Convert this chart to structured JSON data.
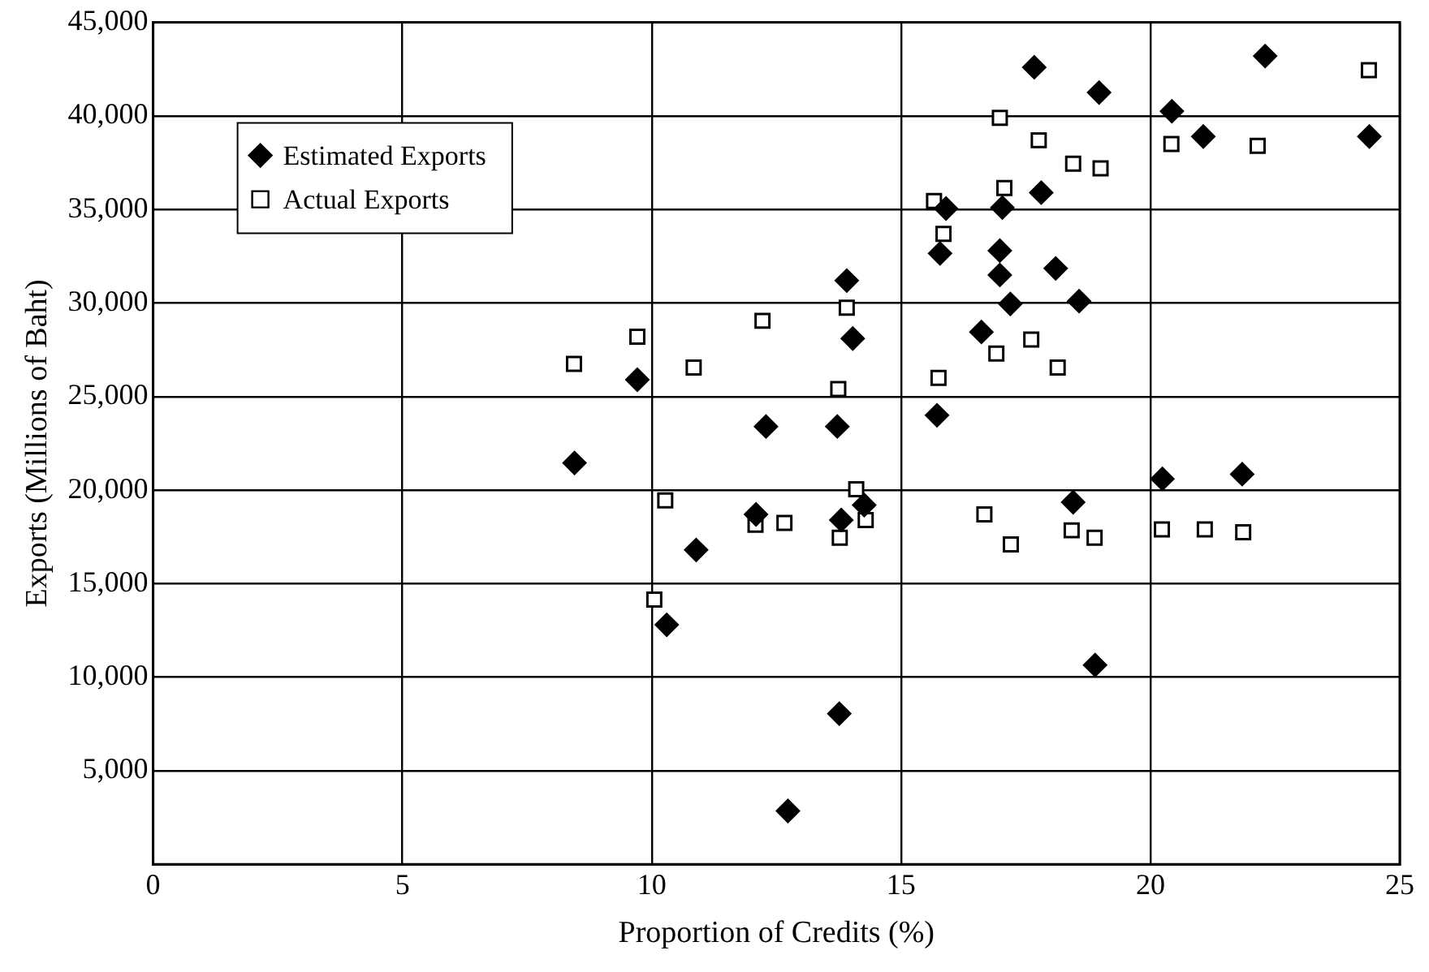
{
  "chart_data": {
    "type": "scatter",
    "xlabel": "Proportion of Credits (%)",
    "ylabel": "Exports (Millions of Baht)",
    "xlim": [
      0,
      25
    ],
    "xticks": [
      0,
      5,
      10,
      15,
      20,
      25
    ],
    "ylim": [
      0,
      45000
    ],
    "yticks": [
      {
        "value": 0,
        "label": null
      },
      {
        "value": 5000,
        "label": "5,000"
      },
      {
        "value": 10000,
        "label": "10,000"
      },
      {
        "value": 15000,
        "label": "15,000"
      },
      {
        "value": 20000,
        "label": "20,000"
      },
      {
        "value": 25000,
        "label": "25,000"
      },
      {
        "value": 30000,
        "label": "30,000"
      },
      {
        "value": 35000,
        "label": "35,000"
      },
      {
        "value": 40000,
        "label": "40,000"
      },
      {
        "value": 45000,
        "label": "45,000"
      }
    ],
    "grid": true,
    "legend": "top left",
    "series": [
      {
        "name": "Estimated Exports",
        "color": "#000000",
        "marker": "diamond",
        "x": [
          13.91,
          14.03,
          9.71,
          12.29,
          13.72,
          8.45,
          12.09,
          13.8,
          14.26,
          10.89,
          10.3,
          13.76,
          12.73,
          17.67,
          18.97,
          22.3,
          20.43,
          21.06,
          24.39,
          15.9,
          17.03,
          17.81,
          15.78,
          16.98,
          16.98,
          18.1,
          17.19,
          18.57,
          16.61,
          15.72,
          20.24,
          21.84,
          18.45,
          18.89
        ],
        "values": [
          31200,
          28100,
          25900,
          23400,
          23400,
          21450,
          18700,
          18400,
          19200,
          16800,
          12800,
          8050,
          2850,
          42600,
          41250,
          43200,
          40250,
          38900,
          38900,
          35050,
          35100,
          35900,
          32650,
          32800,
          31500,
          31850,
          29950,
          30100,
          28450,
          24000,
          20600,
          20850,
          19350,
          10650
        ]
      },
      {
        "name": "Actual Exports",
        "color": "#000000",
        "marker": "square",
        "x": [
          13.91,
          12.22,
          9.71,
          8.44,
          10.84,
          13.74,
          10.27,
          12.08,
          12.66,
          14.1,
          14.29,
          13.77,
          10.05,
          24.38,
          16.98,
          17.76,
          20.42,
          22.15,
          18.45,
          19.0,
          17.07,
          15.66,
          15.85,
          17.61,
          16.91,
          18.14,
          15.75,
          16.67,
          17.2,
          18.42,
          18.88,
          20.23,
          21.09,
          21.86
        ],
        "values": [
          29750,
          29050,
          28200,
          26750,
          26550,
          25400,
          19450,
          18150,
          18250,
          20050,
          18400,
          17450,
          14150,
          42450,
          39900,
          38700,
          38500,
          38400,
          37450,
          37200,
          36150,
          35450,
          33700,
          28050,
          27300,
          26550,
          26000,
          18700,
          17100,
          17850,
          17450,
          17900,
          17900,
          17750
        ]
      }
    ]
  }
}
